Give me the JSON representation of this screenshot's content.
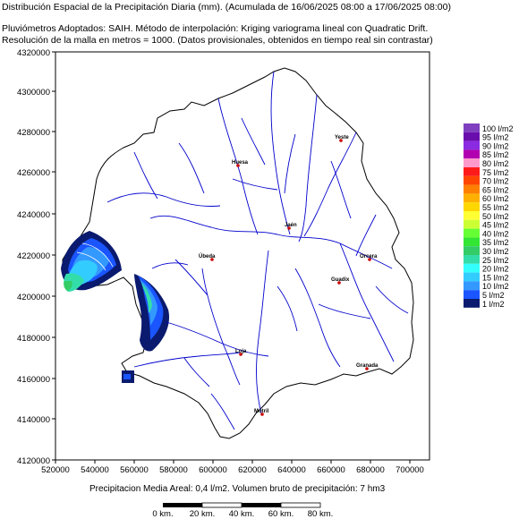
{
  "header": {
    "line1": "Distribución Espacial de la Precipitación Diaria (mm). (Acumulada de 16/06/2025 08:00 a 17/06/2025 08:00)",
    "line2": "Pluviómetros Adoptados: SAIH.  Método de interpolación: Kriging variograma lineal con Quadratic Drift.",
    "line3": "Resolución de la malla en metros = 1000. (Datos provisionales, obtenidos en tiempo real sin contrastar)"
  },
  "axes": {
    "y_ticks": [
      "4320000",
      "4300000",
      "4280000",
      "4260000",
      "4240000",
      "4220000",
      "4200000",
      "4180000",
      "4160000",
      "4140000",
      "4120000"
    ],
    "x_ticks": [
      "520000",
      "540000",
      "560000",
      "580000",
      "600000",
      "620000",
      "640000",
      "660000",
      "680000",
      "700000"
    ]
  },
  "legend": {
    "items": [
      {
        "label": "100 l/m2",
        "color": "#7f3fbf"
      },
      {
        "label": "95 l/m2",
        "color": "#6a0dad"
      },
      {
        "label": "90 l/m2",
        "color": "#8a2be2"
      },
      {
        "label": "85 l/m2",
        "color": "#b000b0"
      },
      {
        "label": "80 l/m2",
        "color": "#ff99cc"
      },
      {
        "label": "75 l/m2",
        "color": "#ff1a1a"
      },
      {
        "label": "70 l/m2",
        "color": "#ff4500"
      },
      {
        "label": "65 l/m2",
        "color": "#ff7f00"
      },
      {
        "label": "60 l/m2",
        "color": "#ffb000"
      },
      {
        "label": "55 l/m2",
        "color": "#ffd700"
      },
      {
        "label": "50 l/m2",
        "color": "#ffff33"
      },
      {
        "label": "45 l/m2",
        "color": "#ccff33"
      },
      {
        "label": "40 l/m2",
        "color": "#66ff33"
      },
      {
        "label": "35 l/m2",
        "color": "#33e633"
      },
      {
        "label": "30 l/m2",
        "color": "#33cc66"
      },
      {
        "label": "25 l/m2",
        "color": "#33ddaa"
      },
      {
        "label": "20 l/m2",
        "color": "#33ffff"
      },
      {
        "label": "15 l/m2",
        "color": "#33ccff"
      },
      {
        "label": "10 l/m2",
        "color": "#3399ff"
      },
      {
        "label": "5 l/m2",
        "color": "#1a55ff"
      },
      {
        "label": "1 l/m2",
        "color": "#0a1a6e"
      }
    ]
  },
  "cities": [
    {
      "name": "Yeste"
    },
    {
      "name": "Huesa"
    },
    {
      "name": "Jaén"
    },
    {
      "name": "Úbeda"
    },
    {
      "name": "Orcera"
    },
    {
      "name": "Guadix"
    },
    {
      "name": "Granada"
    },
    {
      "name": "Loja"
    },
    {
      "name": "Motril"
    }
  ],
  "footer": {
    "summary": "Precipitacion Media Areal: 0,4 l/m2. Volumen bruto de precipitación: 7 hm3",
    "scale_labels": [
      "0 km.",
      "20 km.",
      "40 km.",
      "60 km.",
      "80 km."
    ]
  },
  "colors": {
    "rivers": "#0000cc",
    "outline": "#000000",
    "city": "#cc0000"
  }
}
